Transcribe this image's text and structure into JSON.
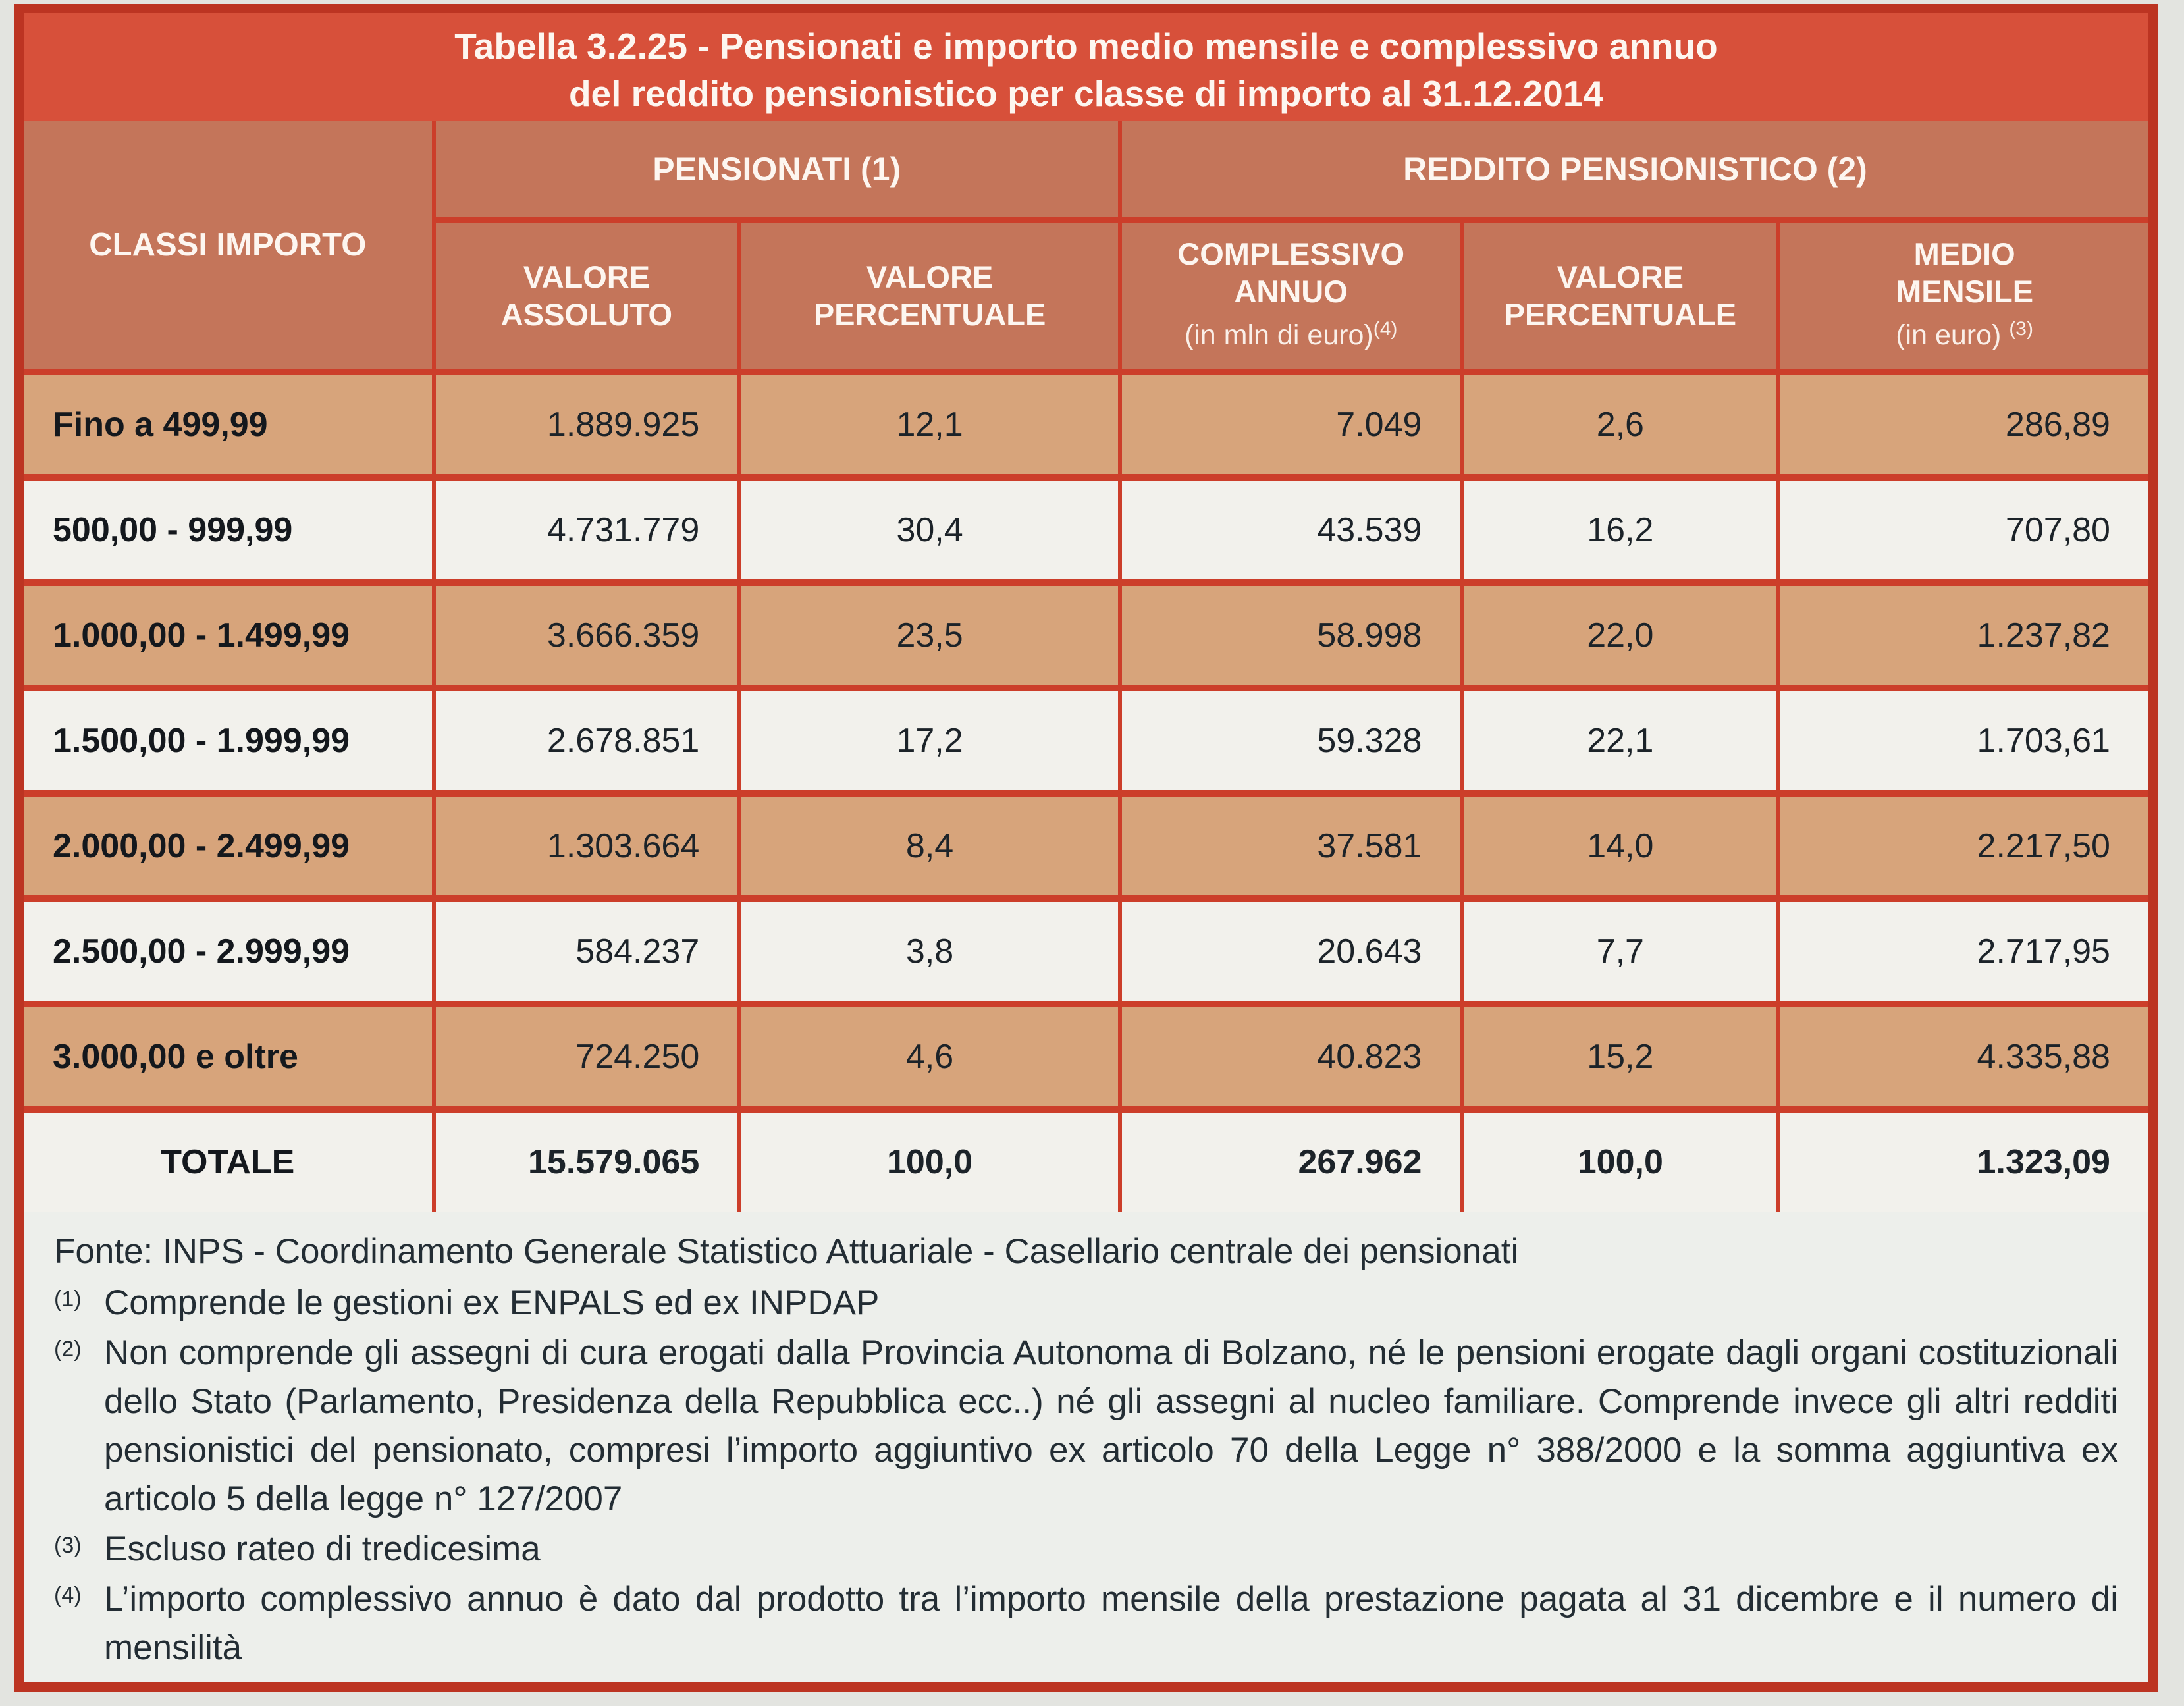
{
  "title": {
    "line1": "Tabella 3.2.25 - Pensionati e importo medio mensile e complessivo annuo",
    "line2": "del reddito pensionistico per classe di importo al 31.12.2014"
  },
  "header": {
    "classi_importo": "CLASSI IMPORTO",
    "pensionati_group": "PENSIONATI (1)",
    "reddito_group": "REDDITO PENSIONISTICO (2)",
    "valore_assoluto": "VALORE ASSOLUTO",
    "valore_percentuale_pensionati": "VALORE PERCENTUALE",
    "complessivo_annuo": "COMPLESSIVO ANNUO",
    "complessivo_annuo_unit": "(in mln di euro)",
    "complessivo_annuo_note": "(4)",
    "valore_percentuale_reddito": "VALORE PERCENTUALE",
    "medio_mensile": "MEDIO MENSILE",
    "medio_mensile_unit": "(in euro)",
    "medio_mensile_note": "(3)"
  },
  "rows": [
    {
      "classe": "Fino a 499,99",
      "valore_assoluto": "1.889.925",
      "valore_percentuale": "12,1",
      "complessivo_annuo": "7.049",
      "reddito_percentuale": "2,6",
      "medio_mensile": "286,89"
    },
    {
      "classe": "500,00 - 999,99",
      "valore_assoluto": "4.731.779",
      "valore_percentuale": "30,4",
      "complessivo_annuo": "43.539",
      "reddito_percentuale": "16,2",
      "medio_mensile": "707,80"
    },
    {
      "classe": "1.000,00 - 1.499,99",
      "valore_assoluto": "3.666.359",
      "valore_percentuale": "23,5",
      "complessivo_annuo": "58.998",
      "reddito_percentuale": "22,0",
      "medio_mensile": "1.237,82"
    },
    {
      "classe": "1.500,00 - 1.999,99",
      "valore_assoluto": "2.678.851",
      "valore_percentuale": "17,2",
      "complessivo_annuo": "59.328",
      "reddito_percentuale": "22,1",
      "medio_mensile": "1.703,61"
    },
    {
      "classe": "2.000,00 - 2.499,99",
      "valore_assoluto": "1.303.664",
      "valore_percentuale": "8,4",
      "complessivo_annuo": "37.581",
      "reddito_percentuale": "14,0",
      "medio_mensile": "2.217,50"
    },
    {
      "classe": "2.500,00 - 2.999,99",
      "valore_assoluto": "584.237",
      "valore_percentuale": "3,8",
      "complessivo_annuo": "20.643",
      "reddito_percentuale": "7,7",
      "medio_mensile": "2.717,95"
    },
    {
      "classe": "3.000,00 e oltre",
      "valore_assoluto": "724.250",
      "valore_percentuale": "4,6",
      "complessivo_annuo": "40.823",
      "reddito_percentuale": "15,2",
      "medio_mensile": "4.335,88"
    }
  ],
  "total": {
    "classe": "TOTALE",
    "valore_assoluto": "15.579.065",
    "valore_percentuale": "100,0",
    "complessivo_annuo": "267.962",
    "reddito_percentuale": "100,0",
    "medio_mensile": "1.323,09"
  },
  "footer": {
    "fonte": "Fonte: INPS - Coordinamento Generale Statistico Attuariale - Casellario centrale dei pensionati",
    "notes": [
      {
        "marker": "(1)",
        "text": "Comprende le gestioni ex ENPALS ed ex INPDAP"
      },
      {
        "marker": "(2)",
        "text": "Non comprende gli assegni di cura erogati dalla Provincia Autonoma di Bolzano, né le pensioni erogate dagli organi costituzionali dello Stato (Parlamento, Presidenza della Repubblica ecc..) né gli assegni al nucleo familiare. Comprende invece gli altri redditi pensionistici del pensionato, compresi l’importo aggiuntivo ex articolo 70 della Legge n° 388/2000 e la somma aggiuntiva ex articolo 5 della legge n° 127/2007"
      },
      {
        "marker": "(3)",
        "text": "Escluso rateo di tredicesima"
      },
      {
        "marker": "(4)",
        "text": "L’importo complessivo annuo è dato dal prodotto tra l’importo mensile della prestazione pagata al 31 dicembre e il numero di mensilità"
      }
    ]
  },
  "colors": {
    "frame": "#bc3422",
    "sep": "#cc3e2a",
    "title_bg": "#d7503a",
    "header_bg": "#c4755a",
    "row_tan": "#d7a47b",
    "row_white": "#f2f1ec",
    "footer_bg": "#edefeb"
  }
}
